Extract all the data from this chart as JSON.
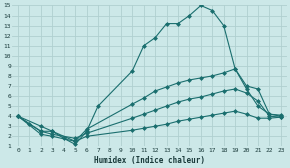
{
  "xlabel": "Humidex (Indice chaleur)",
  "bg_color": "#cce8e8",
  "grid_color": "#b0d0d0",
  "line_color": "#1a6e6e",
  "xlim": [
    -0.5,
    23.5
  ],
  "ylim": [
    1,
    15
  ],
  "xticks": [
    0,
    1,
    2,
    3,
    4,
    5,
    6,
    7,
    8,
    9,
    10,
    11,
    12,
    13,
    14,
    15,
    16,
    17,
    18,
    19,
    20,
    21,
    22,
    23
  ],
  "yticks": [
    1,
    2,
    3,
    4,
    5,
    6,
    7,
    8,
    9,
    10,
    11,
    12,
    13,
    14,
    15
  ],
  "line1_x": [
    0,
    1,
    2,
    3,
    4,
    5,
    6,
    7,
    10,
    11,
    12,
    13,
    14,
    15,
    16,
    17,
    18,
    19,
    20,
    21,
    22,
    23
  ],
  "line1_y": [
    4,
    3.2,
    2.5,
    2.5,
    1.8,
    1.2,
    2.5,
    5.0,
    8.5,
    11,
    11.8,
    13.2,
    13.2,
    14,
    15,
    14.5,
    13,
    8.7,
    6.7,
    5.0,
    4.2,
    4.1
  ],
  "line2_x": [
    0,
    2,
    3,
    5,
    6,
    10,
    11,
    12,
    13,
    14,
    15,
    16,
    17,
    18,
    19,
    20,
    21,
    22,
    23
  ],
  "line2_y": [
    4,
    3,
    2.5,
    1.5,
    2.7,
    5.2,
    5.8,
    6.5,
    6.9,
    7.3,
    7.6,
    7.8,
    8.0,
    8.3,
    8.7,
    7.0,
    6.7,
    4.2,
    4.0
  ],
  "line3_x": [
    0,
    2,
    3,
    5,
    6,
    10,
    11,
    12,
    13,
    14,
    15,
    16,
    17,
    18,
    19,
    20,
    21,
    22,
    23
  ],
  "line3_y": [
    4,
    2.5,
    2.2,
    1.8,
    2.3,
    3.8,
    4.2,
    4.6,
    5.0,
    5.4,
    5.7,
    5.9,
    6.2,
    6.5,
    6.7,
    6.3,
    5.5,
    4.0,
    3.9
  ],
  "line4_x": [
    0,
    2,
    3,
    5,
    6,
    10,
    11,
    12,
    13,
    14,
    15,
    16,
    17,
    18,
    19,
    20,
    21,
    22,
    23
  ],
  "line4_y": [
    4,
    2.2,
    2.0,
    1.5,
    2.0,
    2.6,
    2.8,
    3.0,
    3.2,
    3.5,
    3.7,
    3.9,
    4.1,
    4.3,
    4.5,
    4.2,
    3.8,
    3.8,
    3.9
  ]
}
